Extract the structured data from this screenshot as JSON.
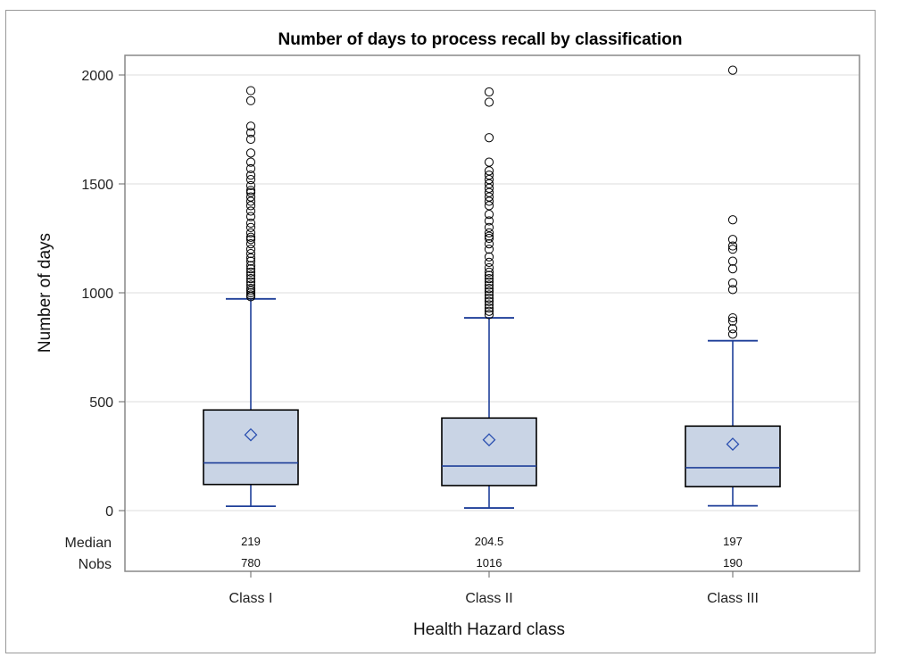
{
  "chart_data": {
    "type": "box",
    "title": "Number of days to process recall by classification",
    "xlabel": "Health Hazard class",
    "ylabel": "Number of days",
    "ylim": [
      0,
      2100
    ],
    "yticks": [
      0,
      500,
      1000,
      1500,
      2000
    ],
    "grid": true,
    "colors": {
      "box_fill": "#c9d4e5",
      "whisker": "#1f3f99",
      "median": "#1f3f99",
      "mean": "#2a4fb0",
      "box_edge": "#000000",
      "outlier": "#000000"
    },
    "inset_table": {
      "row_labels": [
        "Median",
        "Nobs"
      ],
      "median_display": [
        "219",
        "204.5",
        "197"
      ],
      "nobs_display": [
        "780",
        "1016",
        "190"
      ]
    },
    "categories": [
      "Class I",
      "Class II",
      "Class III"
    ],
    "boxes": [
      {
        "name": "Class I",
        "whisker_low": 20,
        "q1": 120,
        "median": 219,
        "q3": 462,
        "whisker_high": 972,
        "mean": 348,
        "outliers": [
          1928,
          1882,
          1765,
          1735,
          1705,
          1642,
          1600,
          1570,
          1540,
          1520,
          1492,
          1470,
          1460,
          1440,
          1420,
          1400,
          1375,
          1350,
          1320,
          1300,
          1275,
          1255,
          1245,
          1225,
          1200,
          1180,
          1160,
          1145,
          1125,
          1110,
          1095,
          1080,
          1065,
          1050,
          1035,
          1020,
          1010,
          1000,
          990,
          982
        ]
      },
      {
        "name": "Class II",
        "whisker_low": 12,
        "q1": 115,
        "median": 204.5,
        "q3": 425,
        "whisker_high": 885,
        "mean": 325,
        "outliers": [
          1922,
          1875,
          1712,
          1600,
          1560,
          1540,
          1520,
          1500,
          1480,
          1460,
          1440,
          1420,
          1400,
          1360,
          1330,
          1300,
          1275,
          1260,
          1250,
          1225,
          1200,
          1165,
          1140,
          1115,
          1095,
          1080,
          1065,
          1050,
          1035,
          1020,
          1005,
          990,
          975,
          960,
          945,
          930,
          915,
          900
        ]
      },
      {
        "name": "Class III",
        "whisker_low": 22,
        "q1": 110,
        "median": 197,
        "q3": 388,
        "whisker_high": 780,
        "mean": 305,
        "outliers": [
          2022,
          1335,
          1245,
          1215,
          1200,
          1145,
          1110,
          1045,
          1015,
          885,
          870,
          835,
          810
        ]
      }
    ]
  }
}
